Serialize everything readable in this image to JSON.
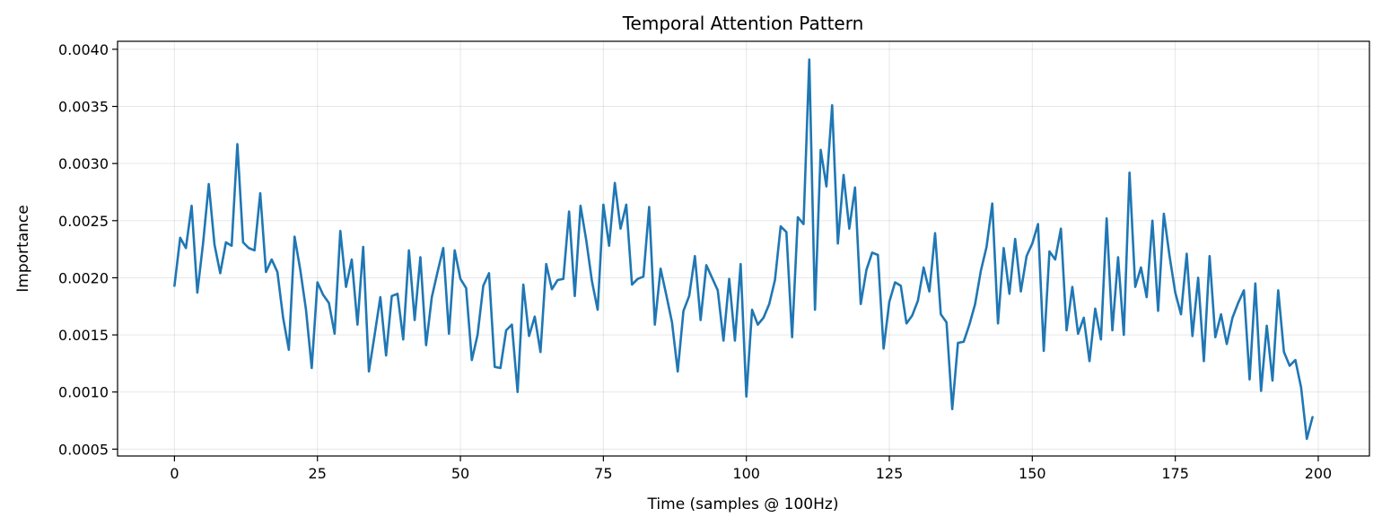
{
  "chart_data": {
    "type": "line",
    "title": "Temporal Attention Pattern",
    "xlabel": "Time (samples @ 100Hz)",
    "ylabel": "Importance",
    "xlim": [
      -9.95,
      208.95
    ],
    "ylim": [
      0.00044,
      0.00407
    ],
    "xticks": [
      0,
      25,
      50,
      75,
      100,
      125,
      150,
      175,
      200
    ],
    "xtick_labels": [
      "0",
      "25",
      "50",
      "75",
      "100",
      "125",
      "150",
      "175",
      "200"
    ],
    "yticks": [
      0.0005,
      0.001,
      0.0015,
      0.002,
      0.0025,
      0.003,
      0.0035,
      0.004
    ],
    "ytick_labels": [
      "0.0005",
      "0.0010",
      "0.0015",
      "0.0020",
      "0.0025",
      "0.0030",
      "0.0035",
      "0.0040"
    ],
    "grid": true,
    "colors": {
      "series": "#1f77b4"
    },
    "series": [
      {
        "x_start": 0,
        "x_step": 1,
        "values": [
          0.00193,
          0.00235,
          0.00226,
          0.00263,
          0.00187,
          0.0023,
          0.00282,
          0.00229,
          0.00204,
          0.00231,
          0.00228,
          0.00317,
          0.00231,
          0.00226,
          0.00224,
          0.00274,
          0.00205,
          0.00216,
          0.00205,
          0.00165,
          0.00137,
          0.00236,
          0.00207,
          0.00172,
          0.00121,
          0.00196,
          0.00185,
          0.00178,
          0.00151,
          0.00241,
          0.00192,
          0.00216,
          0.00159,
          0.00227,
          0.00118,
          0.0015,
          0.00183,
          0.00132,
          0.00184,
          0.00186,
          0.00146,
          0.00224,
          0.00163,
          0.00218,
          0.00141,
          0.00183,
          0.00205,
          0.00226,
          0.00151,
          0.00224,
          0.00199,
          0.00191,
          0.00128,
          0.0015,
          0.00193,
          0.00204,
          0.00122,
          0.00121,
          0.00154,
          0.00159,
          0.001,
          0.00194,
          0.00149,
          0.00166,
          0.00135,
          0.00212,
          0.0019,
          0.00198,
          0.00199,
          0.00258,
          0.00184,
          0.00263,
          0.00233,
          0.00197,
          0.00172,
          0.00264,
          0.00228,
          0.00283,
          0.00243,
          0.00264,
          0.00194,
          0.00199,
          0.00201,
          0.00262,
          0.00159,
          0.00208,
          0.00185,
          0.00161,
          0.00118,
          0.00171,
          0.00184,
          0.00219,
          0.00163,
          0.00211,
          0.002,
          0.00189,
          0.00145,
          0.00199,
          0.00145,
          0.00212,
          0.00096,
          0.00172,
          0.00159,
          0.00165,
          0.00177,
          0.00198,
          0.00245,
          0.0024,
          0.00148,
          0.00253,
          0.00247,
          0.00391,
          0.00172,
          0.00312,
          0.0028,
          0.00351,
          0.0023,
          0.0029,
          0.00243,
          0.00279,
          0.00177,
          0.00207,
          0.00222,
          0.0022,
          0.00138,
          0.00179,
          0.00196,
          0.00193,
          0.0016,
          0.00167,
          0.0018,
          0.00209,
          0.00188,
          0.00239,
          0.00168,
          0.00161,
          0.00085,
          0.00143,
          0.00144,
          0.00159,
          0.00177,
          0.00206,
          0.00227,
          0.00265,
          0.0016,
          0.00226,
          0.00186,
          0.00234,
          0.00188,
          0.00219,
          0.0023,
          0.00247,
          0.00136,
          0.00223,
          0.00216,
          0.00243,
          0.00154,
          0.00192,
          0.00151,
          0.00165,
          0.00127,
          0.00173,
          0.00146,
          0.00252,
          0.00154,
          0.00218,
          0.0015,
          0.00292,
          0.00192,
          0.00209,
          0.00183,
          0.0025,
          0.00171,
          0.00256,
          0.00219,
          0.00187,
          0.00168,
          0.00221,
          0.00149,
          0.002,
          0.00127,
          0.00219,
          0.00148,
          0.00168,
          0.00142,
          0.00165,
          0.00178,
          0.00189,
          0.00111,
          0.00195,
          0.00101,
          0.00158,
          0.0011,
          0.00189,
          0.00135,
          0.00123,
          0.00128,
          0.00104,
          0.00059,
          0.00078
        ]
      }
    ]
  }
}
